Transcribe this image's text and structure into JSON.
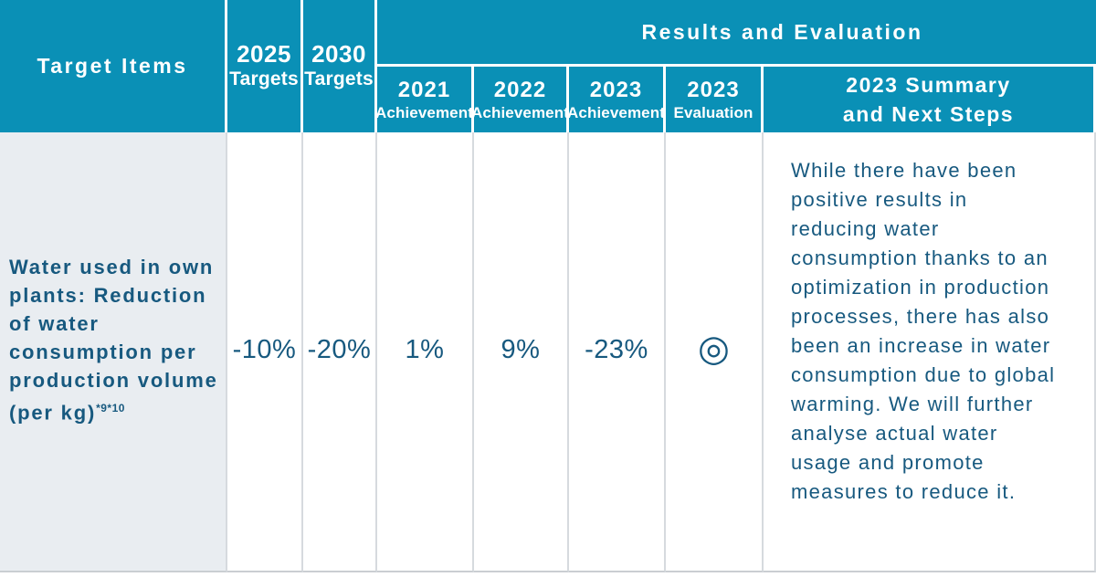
{
  "header": {
    "target_items": "Target Items",
    "targets_2025": {
      "year": "2025",
      "label": "Targets"
    },
    "targets_2030": {
      "year": "2030",
      "label": "Targets"
    },
    "results_and_evaluation": "Results and Evaluation",
    "achievement_2021": {
      "year": "2021",
      "label": "Achievement"
    },
    "achievement_2022": {
      "year": "2022",
      "label": "Achievement"
    },
    "achievement_2023": {
      "year": "2023",
      "label": "Achievement"
    },
    "evaluation_2023": {
      "year": "2023",
      "label": "Evaluation"
    },
    "summary_2023": {
      "line1": "2023 Summary",
      "line2": "and Next Steps"
    }
  },
  "row": {
    "item": "Water used in own plants: Reduction of water consumption per production volume (per kg)",
    "item_footnote": "*9*10",
    "target_2025": "-10%",
    "target_2030": "-20%",
    "achievement_2021": "1%",
    "achievement_2022": "9%",
    "achievement_2023": "-23%",
    "evaluation_2023": "◎",
    "summary": "While there have been positive results in reducing water consumption thanks to an optimization in production processes, there has also been an increase in water consumption due to global warming. We will further analyse actual water usage and promote measures to reduce it."
  },
  "colors": {
    "header_bg": "#0a90b6",
    "header_text": "#ffffff",
    "body_text": "#17597f",
    "item_cell_bg": "#e9edf1",
    "body_border": "#d6dade",
    "bottom_border": "#caced2"
  }
}
